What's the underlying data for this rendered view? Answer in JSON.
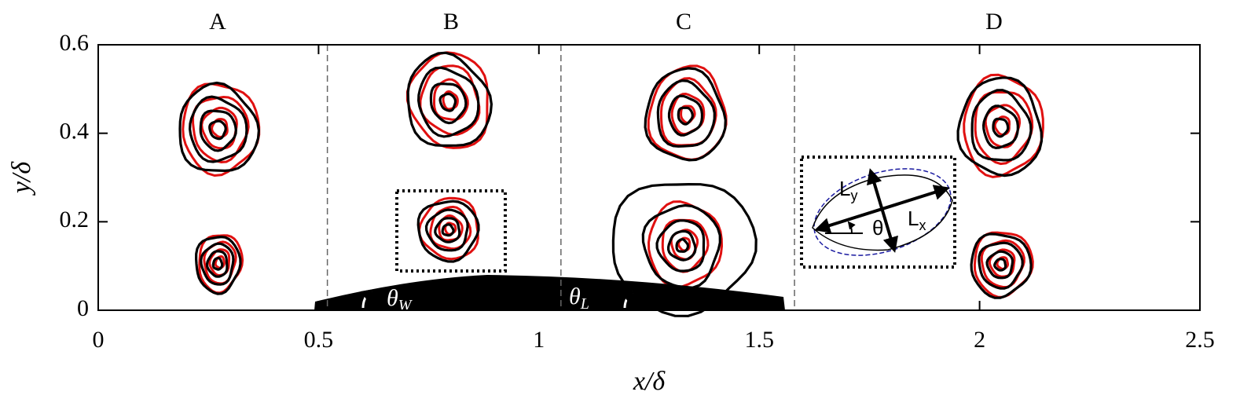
{
  "chart_data": {
    "type": "contour",
    "panel_labels": [
      "A",
      "B",
      "C",
      "D"
    ],
    "x_label": "x/δ",
    "y_label": "y/δ",
    "xlim": [
      0,
      2.5
    ],
    "ylim": [
      0,
      0.6
    ],
    "xticks": [
      0,
      0.5,
      1,
      1.5,
      2,
      2.5
    ],
    "yticks": [
      0,
      0.2,
      0.4,
      0.6
    ],
    "dividers": [
      0.52,
      1.05,
      1.58
    ],
    "angle_labels": [
      {
        "base": "θ",
        "sub": "W"
      },
      {
        "base": "θ",
        "sub": "L"
      }
    ],
    "inset_labels": {
      "lx": {
        "base": "L",
        "sub": "x"
      },
      "ly": {
        "base": "L",
        "sub": "y"
      },
      "angle": "θ"
    }
  }
}
